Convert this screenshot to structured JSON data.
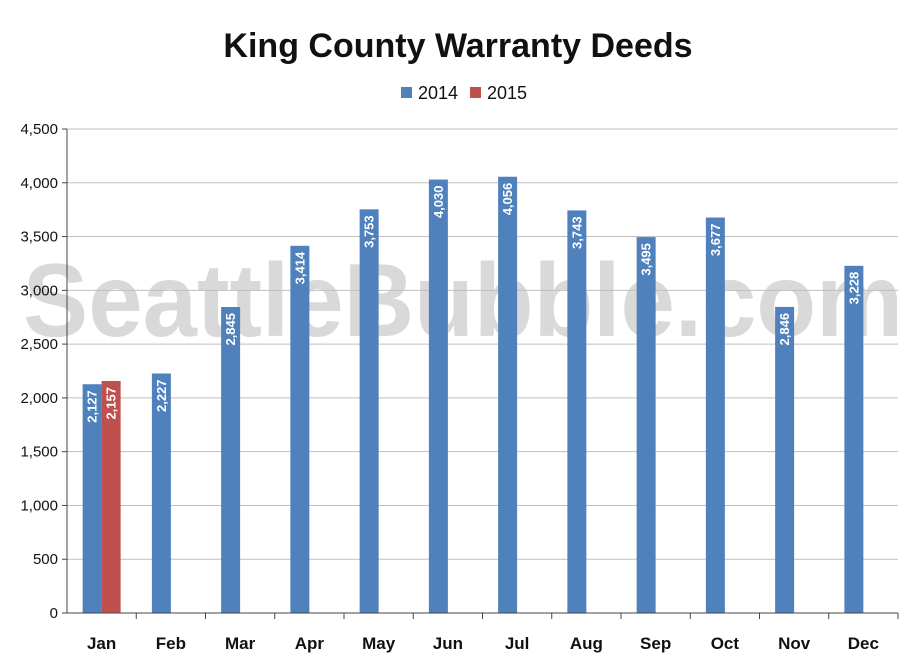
{
  "watermark": "SeattleBubble.com",
  "colors": {
    "2014": "#4F81BD",
    "2015": "#C0504D",
    "grid": "#bfbfbf",
    "axis": "#444444"
  },
  "chart_data": {
    "type": "bar",
    "title": "King County Warranty Deeds",
    "categories": [
      "Jan",
      "Feb",
      "Mar",
      "Apr",
      "May",
      "Jun",
      "Jul",
      "Aug",
      "Sep",
      "Oct",
      "Nov",
      "Dec"
    ],
    "series": [
      {
        "name": "2014",
        "values": [
          2127,
          2227,
          2845,
          3414,
          3753,
          4030,
          4056,
          3743,
          3495,
          3677,
          2846,
          3228
        ],
        "labels": [
          "2,127",
          "2,227",
          "2,845",
          "3,414",
          "3,753",
          "4,030",
          "4,056",
          "3,743",
          "3,495",
          "3,677",
          "2,846",
          "3,228"
        ]
      },
      {
        "name": "2015",
        "values": [
          2157,
          null,
          null,
          null,
          null,
          null,
          null,
          null,
          null,
          null,
          null,
          null
        ],
        "labels": [
          "2,157",
          "",
          "",
          "",
          "",
          "",
          "",
          "",
          "",
          "",
          "",
          ""
        ]
      }
    ],
    "ylim": [
      0,
      4500
    ],
    "yticks": [
      0,
      500,
      1000,
      1500,
      2000,
      2500,
      3000,
      3500,
      4000,
      4500
    ],
    "ytick_labels": [
      "0",
      "500",
      "1,000",
      "1,500",
      "2,000",
      "2,500",
      "3,000",
      "3,500",
      "4,000",
      "4,500"
    ],
    "grid": true,
    "legend_position": "top-center",
    "xlabel": "",
    "ylabel": ""
  }
}
